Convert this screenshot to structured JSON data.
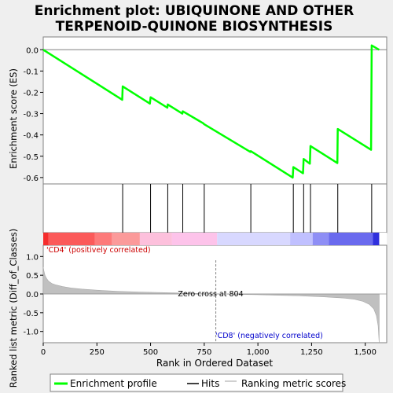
{
  "chart_data": {
    "type": "line",
    "title": "Enrichment plot: UBIQUINONE AND OTHER TERPENOID-QUINONE BIOSYNTHESIS",
    "title_lines": [
      "Enrichment plot: UBIQUINONE AND OTHER",
      "TERPENOID-QUINONE BIOSYNTHESIS"
    ],
    "xlabel": "Rank in Ordered Dataset",
    "top_ylabel": "Enrichment score (ES)",
    "bottom_ylabel": "Ranked list metric (Diff_of_Classes)",
    "xlim": [
      0,
      1600
    ],
    "xticks": [
      0,
      250,
      500,
      750,
      1000,
      1250,
      1500
    ],
    "xtick_labels": [
      "0",
      "250",
      "500",
      "750",
      "1,000",
      "1,250",
      "1,500"
    ],
    "es_ylim": [
      -0.63,
      0.06
    ],
    "es_yticks": [
      0.0,
      -0.1,
      -0.2,
      -0.3,
      -0.4,
      -0.5,
      -0.6
    ],
    "es_ytick_labels": [
      "0.0",
      "-0.1",
      "-0.2",
      "-0.3",
      "-0.4",
      "-0.5",
      "-0.6"
    ],
    "metric_ylim": [
      -1.3,
      1.3
    ],
    "metric_yticks": [
      1.0,
      0.5,
      0.0,
      -0.5,
      -1.0
    ],
    "metric_ytick_labels": [
      "1.0",
      "0.5",
      "0.0",
      "-0.5",
      "-1.0"
    ],
    "es_profile": [
      [
        0,
        0.0
      ],
      [
        368,
        -0.235
      ],
      [
        370,
        -0.172
      ],
      [
        497,
        -0.253
      ],
      [
        500,
        -0.223
      ],
      [
        578,
        -0.272
      ],
      [
        580,
        -0.257
      ],
      [
        648,
        -0.3
      ],
      [
        650,
        -0.289
      ],
      [
        745,
        -0.345
      ],
      [
        750,
        -0.35
      ],
      [
        965,
        -0.48
      ],
      [
        967,
        -0.476
      ],
      [
        1162,
        -0.6
      ],
      [
        1165,
        -0.551
      ],
      [
        1210,
        -0.58
      ],
      [
        1213,
        -0.513
      ],
      [
        1242,
        -0.535
      ],
      [
        1245,
        -0.452
      ],
      [
        1370,
        -0.532
      ],
      [
        1372,
        -0.372
      ],
      [
        1527,
        -0.47
      ],
      [
        1530,
        0.02
      ],
      [
        1565,
        0.0
      ]
    ],
    "hits": [
      370,
      500,
      580,
      650,
      750,
      967,
      1165,
      1213,
      1245,
      1372,
      1530
    ],
    "metric_curve": [
      [
        0,
        0.72
      ],
      [
        3,
        0.62
      ],
      [
        8,
        0.5
      ],
      [
        15,
        0.42
      ],
      [
        25,
        0.34
      ],
      [
        40,
        0.28
      ],
      [
        60,
        0.24
      ],
      [
        90,
        0.2
      ],
      [
        130,
        0.16
      ],
      [
        180,
        0.13
      ],
      [
        250,
        0.1
      ],
      [
        350,
        0.07
      ],
      [
        450,
        0.05
      ],
      [
        600,
        0.03
      ],
      [
        700,
        0.015
      ],
      [
        804,
        0.0
      ],
      [
        900,
        -0.01
      ],
      [
        1000,
        -0.02
      ],
      [
        1100,
        -0.035
      ],
      [
        1200,
        -0.05
      ],
      [
        1300,
        -0.075
      ],
      [
        1400,
        -0.11
      ],
      [
        1450,
        -0.14
      ],
      [
        1490,
        -0.2
      ],
      [
        1520,
        -0.28
      ],
      [
        1540,
        -0.4
      ],
      [
        1552,
        -0.58
      ],
      [
        1560,
        -0.85
      ],
      [
        1565,
        -1.3
      ]
    ],
    "zero_cross_x": 804,
    "zero_cross_label": "Zero cross at 804",
    "pos_label": "'CD4' (positively correlated)",
    "neg_label": "'CD8' (negatively correlated)",
    "heat_segments": [
      {
        "x0": 0,
        "x1": 25,
        "color": "#f52d2d"
      },
      {
        "x0": 25,
        "x1": 240,
        "color": "#fb5a5a"
      },
      {
        "x0": 240,
        "x1": 320,
        "color": "#fd7a7a"
      },
      {
        "x0": 320,
        "x1": 450,
        "color": "#fb9a9a"
      },
      {
        "x0": 450,
        "x1": 600,
        "color": "#fdc0dc"
      },
      {
        "x0": 600,
        "x1": 810,
        "color": "#fdc3ea"
      },
      {
        "x0": 810,
        "x1": 1150,
        "color": "#d8d8ff"
      },
      {
        "x0": 1150,
        "x1": 1255,
        "color": "#c0c0ff"
      },
      {
        "x0": 1255,
        "x1": 1330,
        "color": "#8e8ef5"
      },
      {
        "x0": 1330,
        "x1": 1535,
        "color": "#6a6aee"
      },
      {
        "x0": 1535,
        "x1": 1565,
        "color": "#3030dd"
      }
    ],
    "legend": [
      {
        "label": "Enrichment profile",
        "color": "#00ff00"
      },
      {
        "label": "Hits",
        "color": "#000000"
      },
      {
        "label": "Ranking metric scores",
        "color": "#c0c0c0"
      }
    ]
  }
}
